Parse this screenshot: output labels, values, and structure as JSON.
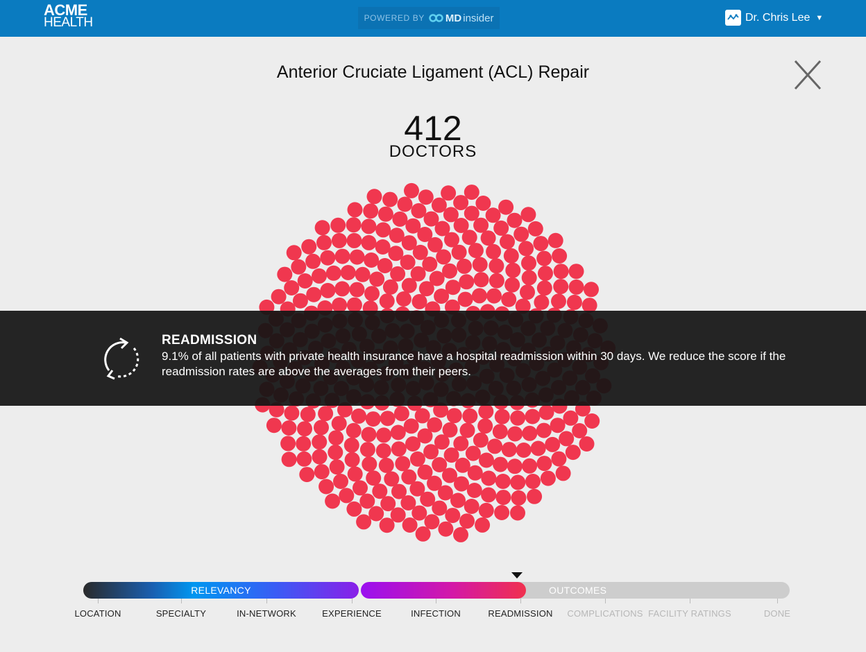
{
  "header": {
    "logo_line1": "ACME",
    "logo_line2": "HEALTH",
    "powered_by": "POWERED BY",
    "brand_md": "MD",
    "brand_insider": "insider",
    "user_name": "Dr. Chris Lee"
  },
  "main": {
    "title": "Anterior Cruciate Ligament (ACL) Repair",
    "doctor_count": "412",
    "doctor_label": "DOCTORS"
  },
  "info_panel": {
    "title": "READMISSION",
    "text": "9.1% of all patients with private health insurance have a hospital readmission within 30 days.  We reduce the score if the readmission rates are above the averages from their peers."
  },
  "progress": {
    "segments": [
      {
        "label": "RELEVANCY"
      },
      {
        "label": ""
      },
      {
        "label": "OUTCOMES"
      }
    ],
    "steps": [
      {
        "label": "LOCATION",
        "active": true
      },
      {
        "label": "SPECIALTY",
        "active": true
      },
      {
        "label": "IN-NETWORK",
        "active": true
      },
      {
        "label": "EXPERIENCE",
        "active": true
      },
      {
        "label": "INFECTION",
        "active": true
      },
      {
        "label": "READMISSION",
        "active": true,
        "current": true
      },
      {
        "label": "COMPLICATIONS",
        "active": false
      },
      {
        "label": "FACILITY RATINGS",
        "active": false
      },
      {
        "label": "DONE",
        "active": false
      }
    ]
  },
  "colors": {
    "header_bg": "#0a7bc0",
    "dot": "#f0374f",
    "overlay_bg": "#141414"
  },
  "icons": [
    "close-icon",
    "readmission-cycle-icon",
    "user-avatar-icon",
    "caret-down-icon",
    "mdinsider-logo-icon"
  ]
}
